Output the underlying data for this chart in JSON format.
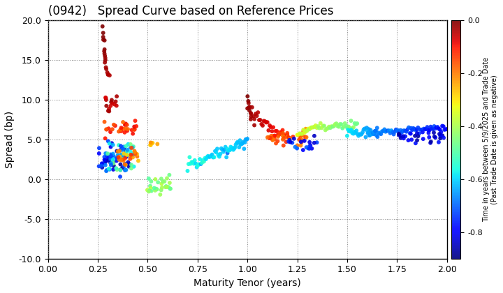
{
  "title": "(0942)   Spread Curve based on Reference Prices",
  "xlabel": "Maturity Tenor (years)",
  "ylabel": "Spread (bp)",
  "colorbar_label": "Time in years between 5/9/2025 and Trade Date\n(Past Trade Date is given as negative)",
  "colorbar_ticks": [
    0.0,
    -0.2,
    -0.4,
    -0.6,
    -0.8
  ],
  "xlim": [
    0.0,
    2.0
  ],
  "ylim": [
    -10.0,
    20.0
  ],
  "yticks": [
    -10.0,
    -5.0,
    0.0,
    5.0,
    10.0,
    15.0,
    20.0
  ],
  "xticks": [
    0.0,
    0.25,
    0.5,
    0.75,
    1.0,
    1.25,
    1.5,
    1.75,
    2.0
  ],
  "background_color": "#ffffff",
  "grid_color": "#888888",
  "cmap": "jet",
  "vmin": -0.9,
  "vmax": 0.0,
  "marker_size": 18
}
